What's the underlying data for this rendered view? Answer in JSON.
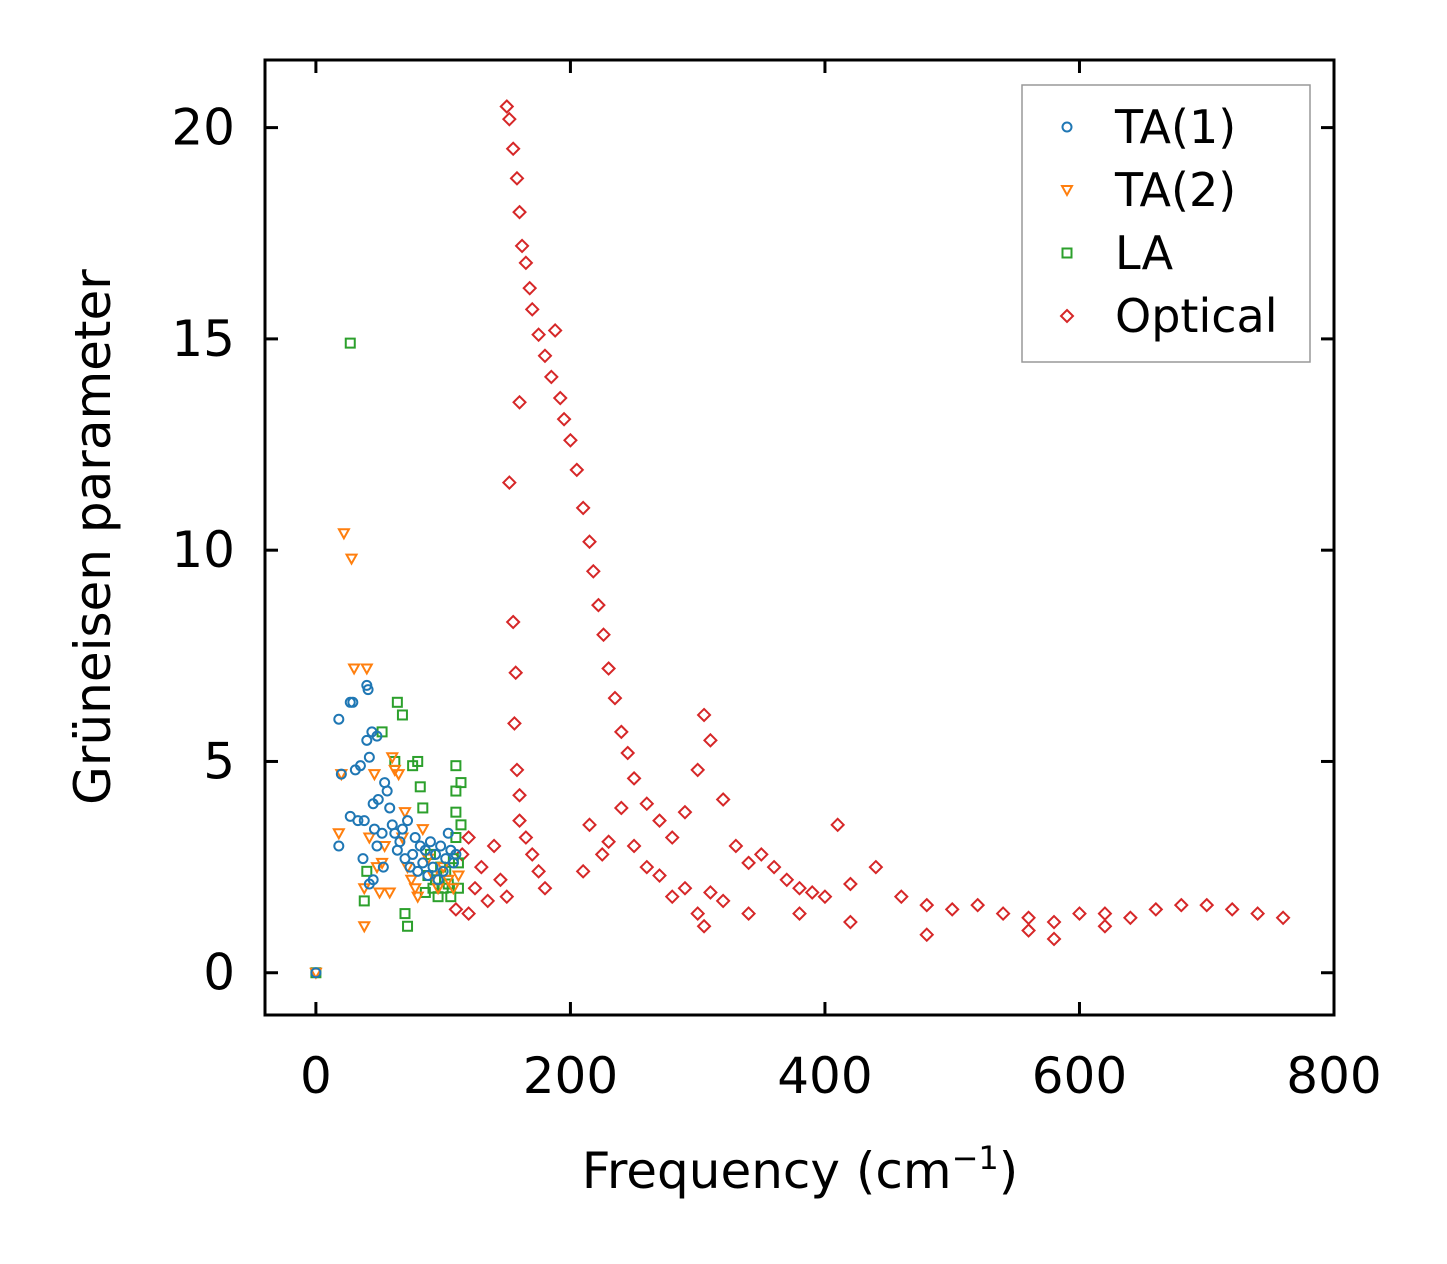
{
  "chart_data": {
    "type": "scatter",
    "title": "",
    "xlabel": "Frequency (cm",
    "xlabel_sup": "−1",
    "xlabel_close": ")",
    "ylabel": "Grüneisen parameter",
    "xlim": [
      -40,
      800
    ],
    "ylim": [
      -1,
      21.6
    ],
    "xticks": [
      0,
      200,
      400,
      600,
      800
    ],
    "xtick_labels": [
      "0",
      "200",
      "400",
      "600",
      "800"
    ],
    "yticks": [
      0,
      5,
      10,
      15,
      20
    ],
    "ytick_labels": [
      "0",
      "5",
      "10",
      "15",
      "20"
    ],
    "legend_position": "top-right",
    "grid": false,
    "series": [
      {
        "name": "TA(1)",
        "marker": "circle",
        "color": "#1f77b4",
        "points": [
          [
            0,
            0
          ],
          [
            18,
            3.0
          ],
          [
            18,
            6.0
          ],
          [
            20,
            4.7
          ],
          [
            27,
            3.7
          ],
          [
            27,
            6.4
          ],
          [
            29,
            6.4
          ],
          [
            31,
            4.8
          ],
          [
            33,
            3.6
          ],
          [
            35,
            4.9
          ],
          [
            37,
            2.7
          ],
          [
            38,
            3.6
          ],
          [
            40,
            5.5
          ],
          [
            40,
            6.8
          ],
          [
            41,
            6.7
          ],
          [
            42,
            5.1
          ],
          [
            44,
            5.7
          ],
          [
            45,
            4.0
          ],
          [
            46,
            3.4
          ],
          [
            48,
            5.6
          ],
          [
            49,
            4.1
          ],
          [
            52,
            3.3
          ],
          [
            53,
            2.5
          ],
          [
            54,
            4.5
          ],
          [
            56,
            4.3
          ],
          [
            58,
            3.9
          ],
          [
            60,
            3.5
          ],
          [
            62,
            3.3
          ],
          [
            64,
            2.9
          ],
          [
            66,
            3.1
          ],
          [
            68,
            3.4
          ],
          [
            70,
            2.7
          ],
          [
            72,
            3.6
          ],
          [
            74,
            2.5
          ],
          [
            76,
            2.8
          ],
          [
            78,
            3.2
          ],
          [
            80,
            2.4
          ],
          [
            82,
            3.0
          ],
          [
            84,
            2.6
          ],
          [
            86,
            2.9
          ],
          [
            88,
            2.3
          ],
          [
            90,
            3.1
          ],
          [
            92,
            2.5
          ],
          [
            94,
            2.8
          ],
          [
            96,
            2.2
          ],
          [
            98,
            3.0
          ],
          [
            100,
            2.4
          ],
          [
            102,
            2.7
          ],
          [
            104,
            3.3
          ],
          [
            106,
            2.9
          ],
          [
            108,
            2.6
          ],
          [
            110,
            2.8
          ],
          [
            42,
            2.1
          ],
          [
            45,
            2.2
          ],
          [
            48,
            3.0
          ]
        ]
      },
      {
        "name": "TA(2)",
        "marker": "triangle-down",
        "color": "#ff7f0e",
        "points": [
          [
            0,
            0
          ],
          [
            18,
            3.3
          ],
          [
            20,
            4.7
          ],
          [
            22,
            10.4
          ],
          [
            28,
            9.8
          ],
          [
            30,
            7.2
          ],
          [
            38,
            2.0
          ],
          [
            38,
            1.1
          ],
          [
            40,
            7.2
          ],
          [
            42,
            3.2
          ],
          [
            46,
            4.7
          ],
          [
            48,
            2.5
          ],
          [
            50,
            1.9
          ],
          [
            52,
            2.6
          ],
          [
            54,
            3.0
          ],
          [
            58,
            1.9
          ],
          [
            60,
            5.1
          ],
          [
            62,
            4.8
          ],
          [
            65,
            4.7
          ],
          [
            68,
            3.2
          ],
          [
            70,
            3.8
          ],
          [
            72,
            2.5
          ],
          [
            75,
            2.2
          ],
          [
            78,
            2.0
          ],
          [
            80,
            1.8
          ],
          [
            84,
            3.4
          ],
          [
            88,
            2.7
          ],
          [
            92,
            2.3
          ],
          [
            96,
            2.0
          ],
          [
            100,
            2.5
          ],
          [
            104,
            2.2
          ],
          [
            108,
            2.0
          ],
          [
            112,
            2.3
          ]
        ]
      },
      {
        "name": "LA",
        "marker": "square",
        "color": "#2ca02c",
        "points": [
          [
            0,
            0
          ],
          [
            27,
            14.9
          ],
          [
            38,
            1.7
          ],
          [
            40,
            2.4
          ],
          [
            52,
            5.7
          ],
          [
            62,
            5.0
          ],
          [
            64,
            6.4
          ],
          [
            68,
            6.1
          ],
          [
            70,
            1.4
          ],
          [
            72,
            1.1
          ],
          [
            76,
            4.9
          ],
          [
            80,
            5.0
          ],
          [
            82,
            4.4
          ],
          [
            84,
            3.9
          ],
          [
            86,
            1.9
          ],
          [
            88,
            2.3
          ],
          [
            90,
            2.8
          ],
          [
            92,
            2.0
          ],
          [
            94,
            2.2
          ],
          [
            96,
            1.8
          ],
          [
            98,
            2.5
          ],
          [
            100,
            2.0
          ],
          [
            102,
            2.4
          ],
          [
            104,
            2.1
          ],
          [
            106,
            1.8
          ],
          [
            108,
            2.7
          ],
          [
            110,
            4.9
          ],
          [
            110,
            4.3
          ],
          [
            110,
            3.8
          ],
          [
            110,
            3.2
          ],
          [
            112,
            2.6
          ],
          [
            112,
            2.0
          ],
          [
            114,
            4.5
          ],
          [
            114,
            3.5
          ]
        ]
      },
      {
        "name": "Optical",
        "marker": "diamond",
        "color": "#d62728",
        "points": [
          [
            150,
            20.5
          ],
          [
            152,
            20.2
          ],
          [
            155,
            19.5
          ],
          [
            158,
            18.8
          ],
          [
            160,
            18.0
          ],
          [
            162,
            17.2
          ],
          [
            165,
            16.8
          ],
          [
            168,
            16.2
          ],
          [
            170,
            15.7
          ],
          [
            175,
            15.1
          ],
          [
            180,
            14.6
          ],
          [
            185,
            14.1
          ],
          [
            188,
            15.2
          ],
          [
            192,
            13.6
          ],
          [
            195,
            13.1
          ],
          [
            200,
            12.6
          ],
          [
            205,
            11.9
          ],
          [
            210,
            11.0
          ],
          [
            215,
            10.2
          ],
          [
            218,
            9.5
          ],
          [
            222,
            8.7
          ],
          [
            226,
            8.0
          ],
          [
            230,
            7.2
          ],
          [
            235,
            6.5
          ],
          [
            240,
            5.7
          ],
          [
            245,
            5.2
          ],
          [
            250,
            4.6
          ],
          [
            260,
            4.0
          ],
          [
            270,
            3.6
          ],
          [
            280,
            3.2
          ],
          [
            290,
            3.8
          ],
          [
            300,
            4.8
          ],
          [
            305,
            6.1
          ],
          [
            310,
            5.5
          ],
          [
            320,
            4.1
          ],
          [
            330,
            3.0
          ],
          [
            340,
            2.6
          ],
          [
            350,
            2.8
          ],
          [
            360,
            2.5
          ],
          [
            370,
            2.2
          ],
          [
            380,
            2.0
          ],
          [
            390,
            1.9
          ],
          [
            400,
            1.8
          ],
          [
            410,
            3.5
          ],
          [
            420,
            2.1
          ],
          [
            440,
            2.5
          ],
          [
            460,
            1.8
          ],
          [
            480,
            1.6
          ],
          [
            500,
            1.5
          ],
          [
            520,
            1.6
          ],
          [
            540,
            1.4
          ],
          [
            560,
            1.3
          ],
          [
            580,
            1.2
          ],
          [
            600,
            1.4
          ],
          [
            620,
            1.4
          ],
          [
            640,
            1.3
          ],
          [
            660,
            1.5
          ],
          [
            680,
            1.6
          ],
          [
            700,
            1.6
          ],
          [
            720,
            1.5
          ],
          [
            740,
            1.4
          ],
          [
            760,
            1.3
          ],
          [
            152,
            11.6
          ],
          [
            155,
            8.3
          ],
          [
            157,
            7.1
          ],
          [
            156,
            5.9
          ],
          [
            158,
            4.8
          ],
          [
            160,
            13.5
          ],
          [
            160,
            4.2
          ],
          [
            160,
            3.6
          ],
          [
            165,
            3.2
          ],
          [
            170,
            2.8
          ],
          [
            175,
            2.4
          ],
          [
            180,
            2.0
          ],
          [
            130,
            2.5
          ],
          [
            140,
            3.0
          ],
          [
            145,
            2.2
          ],
          [
            120,
            3.2
          ],
          [
            125,
            2.0
          ],
          [
            135,
            1.7
          ],
          [
            110,
            1.5
          ],
          [
            115,
            2.8
          ],
          [
            120,
            1.4
          ],
          [
            150,
            1.8
          ],
          [
            210,
            2.4
          ],
          [
            215,
            3.5
          ],
          [
            225,
            2.8
          ],
          [
            230,
            3.1
          ],
          [
            240,
            3.9
          ],
          [
            250,
            3.0
          ],
          [
            260,
            2.5
          ],
          [
            270,
            2.3
          ],
          [
            280,
            1.8
          ],
          [
            290,
            2.0
          ],
          [
            300,
            1.4
          ],
          [
            305,
            1.1
          ],
          [
            310,
            1.9
          ],
          [
            320,
            1.7
          ],
          [
            340,
            1.4
          ],
          [
            380,
            1.4
          ],
          [
            420,
            1.2
          ],
          [
            480,
            0.9
          ],
          [
            560,
            1.0
          ],
          [
            580,
            0.8
          ],
          [
            620,
            1.1
          ]
        ]
      }
    ]
  }
}
